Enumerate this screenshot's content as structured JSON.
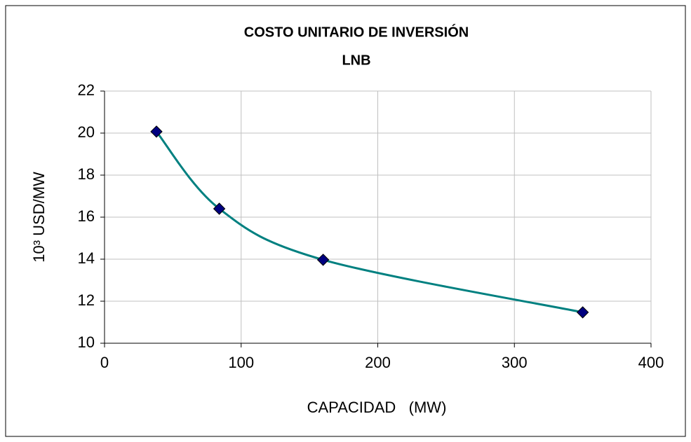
{
  "chart_data": {
    "type": "line",
    "title": "COSTO UNITARIO DE INVERSIÓN",
    "subtitle": "LNB",
    "x_label": "CAPACIDAD   (MW)",
    "y_label": "10³ USD/MW",
    "x": [
      38,
      84,
      160,
      350
    ],
    "values": [
      20.07,
      16.4,
      13.97,
      11.47
    ],
    "color": "#008080",
    "marker_color": "#000080",
    "smooth": true,
    "xlim": [
      0,
      400
    ],
    "xticks": [
      0,
      100,
      200,
      300,
      400
    ],
    "ylim": [
      10,
      22
    ],
    "yticks": [
      10,
      12,
      14,
      16,
      18,
      20,
      22
    ],
    "grid": true
  }
}
